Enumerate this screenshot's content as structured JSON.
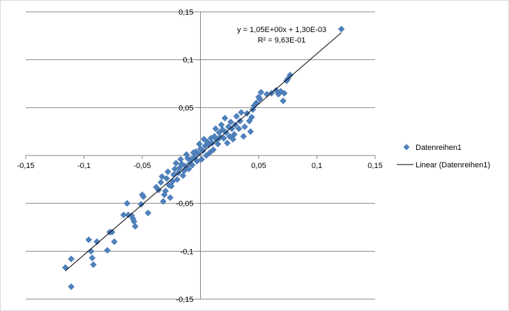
{
  "chart_data": {
    "type": "scatter",
    "title": "",
    "xlabel": "",
    "ylabel": "",
    "xlim": [
      -0.15,
      0.15
    ],
    "ylim": [
      -0.15,
      0.15
    ],
    "x_ticks": [
      -0.15,
      -0.1,
      -0.05,
      0,
      0.05,
      0.1,
      0.15
    ],
    "y_ticks": [
      -0.15,
      -0.1,
      -0.05,
      0,
      0.05,
      0.1,
      0.15
    ],
    "x_tick_labels": [
      "-0,15",
      "-0,1",
      "-0,05",
      "0",
      "0,05",
      "0,1",
      "0,15"
    ],
    "y_tick_labels": [
      "-0,15",
      "-0,1",
      "-0,05",
      "0",
      "0,05",
      "0,1",
      "0,15"
    ],
    "grid": "horizontal",
    "legend_position": "right",
    "marker_color": "#4f81bd",
    "trendline_color": "#000000",
    "series": [
      {
        "name": "Datenreihen1",
        "points": [
          [
            0.121,
            0.132
          ],
          [
            0.077,
            0.084
          ],
          [
            0.075,
            0.08
          ],
          [
            0.074,
            0.078
          ],
          [
            0.072,
            0.065
          ],
          [
            0.071,
            0.057
          ],
          [
            0.069,
            0.067
          ],
          [
            0.067,
            0.064
          ],
          [
            0.065,
            0.068
          ],
          [
            0.061,
            0.065
          ],
          [
            0.057,
            0.064
          ],
          [
            0.052,
            0.066
          ],
          [
            0.051,
            0.059
          ],
          [
            0.05,
            0.061
          ],
          [
            0.048,
            0.055
          ],
          [
            0.046,
            0.052
          ],
          [
            0.045,
            0.048
          ],
          [
            0.044,
            0.04
          ],
          [
            0.043,
            0.025
          ],
          [
            0.042,
            0.036
          ],
          [
            0.04,
            0.044
          ],
          [
            0.038,
            0.03
          ],
          [
            0.037,
            0.02
          ],
          [
            0.035,
            0.045
          ],
          [
            0.034,
            0.036
          ],
          [
            0.033,
            0.028
          ],
          [
            0.031,
            0.041
          ],
          [
            0.03,
            0.032
          ],
          [
            0.029,
            0.022
          ],
          [
            0.028,
            0.017
          ],
          [
            0.027,
            0.028
          ],
          [
            0.026,
            0.035
          ],
          [
            0.025,
            0.02
          ],
          [
            0.024,
            0.03
          ],
          [
            0.023,
            0.013
          ],
          [
            0.022,
            0.024
          ],
          [
            0.021,
            0.039
          ],
          [
            0.02,
            0.018
          ],
          [
            0.019,
            0.027
          ],
          [
            0.018,
            0.032
          ],
          [
            0.017,
            0.019
          ],
          [
            0.016,
            0.024
          ],
          [
            0.015,
            0.012
          ],
          [
            0.014,
            0.016
          ],
          [
            0.013,
            0.028
          ],
          [
            0.012,
            0.02
          ],
          [
            0.011,
            0.006
          ],
          [
            0.01,
            0.013
          ],
          [
            0.009,
            0.018
          ],
          [
            0.008,
            0.003
          ],
          [
            0.007,
            0.011
          ],
          [
            0.006,
            0.014
          ],
          [
            0.005,
            0.0
          ],
          [
            0.004,
            0.01
          ],
          [
            0.003,
            0.017
          ],
          [
            0.002,
            0.005
          ],
          [
            0.001,
            -0.004
          ],
          [
            0.0,
            0.007
          ],
          [
            -0.001,
            0.012
          ],
          [
            -0.002,
            0.002
          ],
          [
            -0.003,
            -0.006
          ],
          [
            -0.004,
            0.004
          ],
          [
            -0.005,
            -0.002
          ],
          [
            -0.006,
            0.003
          ],
          [
            -0.007,
            -0.01
          ],
          [
            -0.008,
            -0.004
          ],
          [
            -0.009,
            -0.008
          ],
          [
            -0.01,
            -0.014
          ],
          [
            -0.011,
            -0.003
          ],
          [
            -0.012,
            0.001
          ],
          [
            -0.013,
            -0.011
          ],
          [
            -0.014,
            -0.016
          ],
          [
            -0.015,
            -0.021
          ],
          [
            -0.016,
            -0.009
          ],
          [
            -0.017,
            -0.004
          ],
          [
            -0.018,
            -0.013
          ],
          [
            -0.019,
            -0.018
          ],
          [
            -0.02,
            -0.025
          ],
          [
            -0.021,
            -0.008
          ],
          [
            -0.022,
            -0.014
          ],
          [
            -0.023,
            -0.02
          ],
          [
            -0.024,
            -0.027
          ],
          [
            -0.025,
            -0.032
          ],
          [
            -0.026,
            -0.044
          ],
          [
            -0.027,
            -0.031
          ],
          [
            -0.028,
            -0.017
          ],
          [
            -0.029,
            -0.024
          ],
          [
            -0.03,
            -0.037
          ],
          [
            -0.031,
            -0.041
          ],
          [
            -0.032,
            -0.048
          ],
          [
            -0.033,
            -0.022
          ],
          [
            -0.034,
            -0.028
          ],
          [
            -0.036,
            -0.036
          ],
          [
            -0.038,
            -0.033
          ],
          [
            -0.045,
            -0.06
          ],
          [
            -0.049,
            -0.043
          ],
          [
            -0.05,
            -0.041
          ],
          [
            -0.051,
            -0.051
          ],
          [
            -0.056,
            -0.074
          ],
          [
            -0.057,
            -0.069
          ],
          [
            -0.058,
            -0.066
          ],
          [
            -0.059,
            -0.063
          ],
          [
            -0.062,
            -0.062
          ],
          [
            -0.063,
            -0.05
          ],
          [
            -0.066,
            -0.062
          ],
          [
            -0.074,
            -0.09
          ],
          [
            -0.076,
            -0.08
          ],
          [
            -0.078,
            -0.08
          ],
          [
            -0.08,
            -0.099
          ],
          [
            -0.089,
            -0.09
          ],
          [
            -0.092,
            -0.114
          ],
          [
            -0.093,
            -0.107
          ],
          [
            -0.094,
            -0.1
          ],
          [
            -0.096,
            -0.088
          ],
          [
            -0.111,
            -0.108
          ],
          [
            -0.111,
            -0.137
          ],
          [
            -0.116,
            -0.117
          ]
        ]
      }
    ],
    "trendline": {
      "name": "Linear (Datenreihen1)",
      "slope": 1.05,
      "intercept": 0.0013,
      "x_range": [
        -0.116,
        0.121
      ],
      "equation_label": "y = 1,05E+00x + 1,30E-03",
      "r2_label": "R² = 9,63E-01"
    }
  }
}
